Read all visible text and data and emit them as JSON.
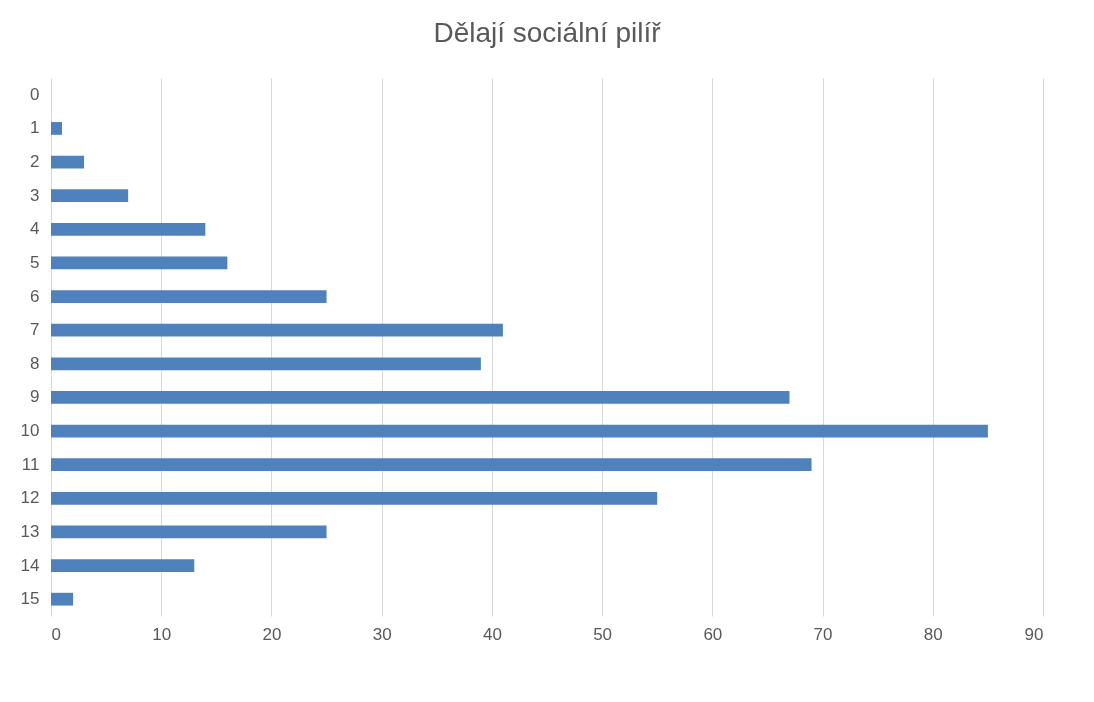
{
  "chart_data": {
    "type": "bar",
    "orientation": "horizontal",
    "title": "Dělají sociální pilíř",
    "categories": [
      "0",
      "1",
      "2",
      "3",
      "4",
      "5",
      "6",
      "7",
      "8",
      "9",
      "10",
      "11",
      "12",
      "13",
      "14",
      "15"
    ],
    "values": [
      0,
      1,
      3,
      7,
      14,
      16,
      25,
      41,
      39,
      67,
      85,
      69,
      55,
      25,
      13,
      2
    ],
    "color": "#4f81bd",
    "xlim": [
      0,
      90
    ],
    "xticks": [
      0,
      10,
      20,
      30,
      40,
      50,
      60,
      70,
      80,
      90
    ],
    "grid": "x"
  }
}
